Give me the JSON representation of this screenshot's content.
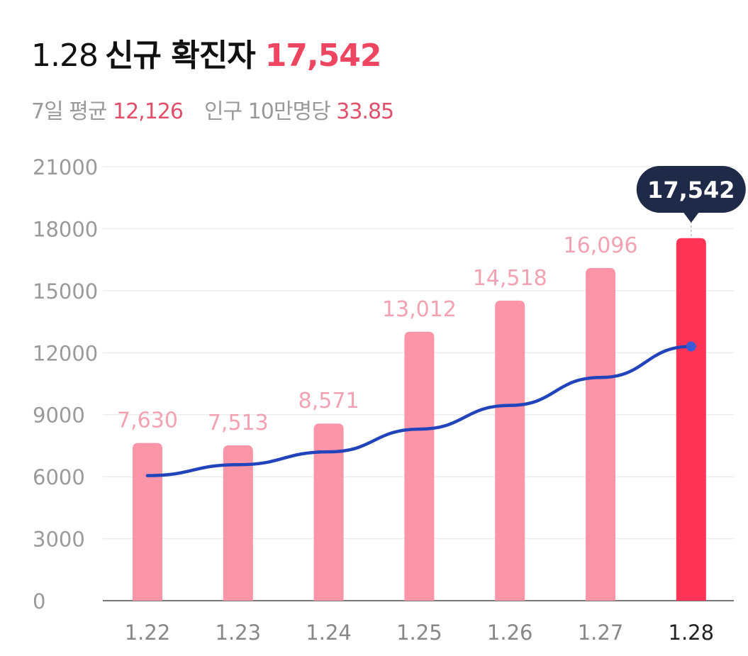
{
  "header": {
    "date": "1.28",
    "label": "신규 확진자",
    "value": "17,542"
  },
  "subheader": {
    "avg_label": "7일 평균",
    "avg_value": "12,126",
    "per_label": "인구 10만명당",
    "per_value": "33.85"
  },
  "colors": {
    "bar": "#fc95a7",
    "bar_current": "#ff3355",
    "line": "#2244bb",
    "tooltip": "#1f2a48",
    "accent": "#ee4560"
  },
  "chart_data": {
    "type": "bar",
    "categories": [
      "1.22",
      "1.23",
      "1.24",
      "1.25",
      "1.26",
      "1.27",
      "1.28"
    ],
    "values": [
      7630,
      7513,
      8571,
      13012,
      14518,
      16096,
      17542
    ],
    "value_labels": [
      "7,630",
      "7,513",
      "8,571",
      "13,012",
      "14,518",
      "16,096",
      "17,542"
    ],
    "line_values": [
      6050,
      6580,
      7200,
      8300,
      9450,
      10800,
      12300
    ],
    "yticks": [
      "0",
      "3000",
      "6000",
      "9000",
      "12000",
      "15000",
      "18000",
      "21000"
    ],
    "ylim": [
      0,
      21000
    ],
    "highlight_index": 6,
    "tooltip": "17,542",
    "grid": true
  }
}
